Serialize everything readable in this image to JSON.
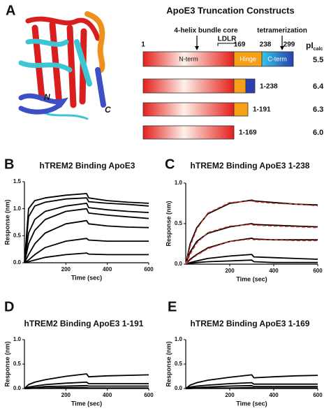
{
  "panel_a": {
    "label": "A",
    "n_terminus": "N",
    "c_terminus": "C"
  },
  "constructs": {
    "title": "ApoE3 Truncation Constructs",
    "annotations": {
      "bundle": "4-helix bundle core",
      "ldlr": "LDLR",
      "tetramerization": "tetramerization"
    },
    "residues": [
      "1",
      "169",
      "238",
      "299"
    ],
    "domains": [
      "N-term",
      "Hinge",
      "C-term"
    ],
    "pi_header": "pI",
    "pi_subscript": "calc",
    "rows": [
      {
        "pi": "5.5"
      },
      {
        "label": "1-238",
        "pi": "6.4"
      },
      {
        "label": "1-191",
        "pi": "6.3"
      },
      {
        "label": "1-169",
        "pi": "6.0"
      }
    ]
  },
  "chart_data": [
    {
      "type": "line",
      "panel": "B",
      "title": "hTREM2 Binding ApoE3",
      "x_label": "Time (sec)",
      "y_label": "Response (nm)",
      "x": [
        0,
        20,
        50,
        100,
        200,
        300,
        310,
        400,
        500,
        600
      ],
      "xlim": [
        0,
        600
      ],
      "xticks": [
        200,
        400,
        600
      ],
      "ylim": [
        0,
        1.5
      ],
      "yticks": [
        {
          "value": 0,
          "label": "0.0"
        },
        0.5,
        {
          "value": 1,
          "label": "1.0"
        },
        1.5
      ],
      "series": [
        {
          "color": "#000000",
          "values": [
            0,
            1.0,
            1.15,
            1.2,
            1.25,
            1.28,
            1.2,
            1.15,
            1.12,
            1.1
          ]
        },
        {
          "color": "#000000",
          "values": [
            0,
            0.85,
            1.05,
            1.12,
            1.18,
            1.2,
            1.13,
            1.1,
            1.08,
            1.05
          ]
        },
        {
          "color": "#000000",
          "values": [
            0,
            0.55,
            0.8,
            0.95,
            1.05,
            1.1,
            1.02,
            0.98,
            0.95,
            0.93
          ]
        },
        {
          "color": "#000000",
          "values": [
            0,
            0.35,
            0.6,
            0.8,
            0.95,
            1.0,
            0.92,
            0.88,
            0.85,
            0.82
          ]
        },
        {
          "color": "#000000",
          "values": [
            0,
            0.15,
            0.35,
            0.55,
            0.72,
            0.78,
            0.72,
            0.68,
            0.66,
            0.65
          ]
        },
        {
          "color": "#000000",
          "values": [
            0,
            0.05,
            0.15,
            0.28,
            0.4,
            0.45,
            0.42,
            0.4,
            0.4,
            0.4
          ]
        },
        {
          "color": "#000000",
          "values": [
            0,
            0.02,
            0.05,
            0.1,
            0.15,
            0.18,
            0.16,
            0.15,
            0.15,
            0.15
          ]
        }
      ]
    },
    {
      "type": "line",
      "panel": "C",
      "title": "hTREM2 Binding ApoE3 1-238",
      "x_label": "Time (sec)",
      "y_label": "Response (nm)",
      "x": [
        0,
        20,
        50,
        100,
        200,
        300,
        310,
        400,
        500,
        600
      ],
      "xlim": [
        0,
        600
      ],
      "xticks": [
        200,
        400,
        600
      ],
      "ylim": [
        0,
        1.0
      ],
      "yticks": [
        {
          "value": 0,
          "label": "0.0"
        },
        0.5,
        {
          "value": 1,
          "label": "1.0"
        }
      ],
      "series": [
        {
          "color": "#000000",
          "values": [
            0,
            0.25,
            0.45,
            0.62,
            0.75,
            0.79,
            0.78,
            0.76,
            0.74,
            0.73
          ]
        },
        {
          "color": "#000000",
          "values": [
            0,
            0.15,
            0.28,
            0.38,
            0.46,
            0.5,
            0.49,
            0.48,
            0.47,
            0.46
          ]
        },
        {
          "color": "#000000",
          "values": [
            0,
            0.06,
            0.12,
            0.2,
            0.28,
            0.32,
            0.31,
            0.3,
            0.3,
            0.3
          ]
        },
        {
          "color": "#000000",
          "values": [
            0,
            0.02,
            0.04,
            0.07,
            0.1,
            0.12,
            0.09,
            0.08,
            0.07,
            0.06
          ]
        },
        {
          "color": "#000000",
          "values": [
            0,
            0.01,
            0.02,
            0.03,
            0.04,
            0.05,
            0.03,
            0.02,
            0.02,
            0.02
          ]
        },
        {
          "color": "#e0302a",
          "dashed": true,
          "values": [
            0,
            0.22,
            0.43,
            0.63,
            0.76,
            0.78,
            0.77,
            0.75,
            0.74,
            0.72
          ]
        },
        {
          "color": "#e0302a",
          "dashed": true,
          "values": [
            0,
            0.12,
            0.26,
            0.39,
            0.47,
            0.49,
            0.48,
            0.47,
            0.46,
            0.45
          ]
        },
        {
          "color": "#e0302a",
          "dashed": true,
          "values": [
            0,
            0.05,
            0.11,
            0.19,
            0.28,
            0.31,
            0.3,
            0.3,
            0.29,
            0.29
          ]
        }
      ]
    },
    {
      "type": "line",
      "panel": "D",
      "title": "hTREM2 Binding ApoE3 1-191",
      "x_label": "Time (sec)",
      "y_label": "Response (nm)",
      "x": [
        0,
        20,
        50,
        100,
        200,
        300,
        310,
        400,
        500,
        600
      ],
      "xlim": [
        0,
        600
      ],
      "xticks": [
        200,
        400,
        600
      ],
      "ylim": [
        0,
        1.0
      ],
      "yticks": [
        {
          "value": 0,
          "label": "0.0"
        },
        0.5,
        {
          "value": 1,
          "label": "1.0"
        }
      ],
      "series": [
        {
          "color": "#000000",
          "values": [
            0,
            0.08,
            0.13,
            0.18,
            0.25,
            0.3,
            0.24,
            0.26,
            0.27,
            0.28
          ]
        },
        {
          "color": "#000000",
          "values": [
            0,
            0.03,
            0.05,
            0.08,
            0.11,
            0.13,
            0.1,
            0.1,
            0.1,
            0.1
          ]
        },
        {
          "color": "#000000",
          "values": [
            0,
            0.01,
            0.02,
            0.04,
            0.05,
            0.06,
            0.05,
            0.05,
            0.05,
            0.05
          ]
        },
        {
          "color": "#000000",
          "values": [
            0,
            0,
            0.01,
            0.01,
            0.02,
            0.02,
            0.01,
            0.01,
            0.01,
            0.01
          ]
        }
      ]
    },
    {
      "type": "line",
      "panel": "E",
      "title": "hTREM2 Binding ApoE3 1-169",
      "x_label": "Time (sec)",
      "y_label": "Response (nm)",
      "x": [
        0,
        20,
        50,
        100,
        200,
        300,
        310,
        400,
        500,
        600
      ],
      "xlim": [
        0,
        600
      ],
      "xticks": [
        200,
        400,
        600
      ],
      "ylim": [
        0,
        1.0
      ],
      "yticks": [
        {
          "value": 0,
          "label": "0.0"
        },
        0.5,
        {
          "value": 1,
          "label": "1.0"
        }
      ],
      "series": [
        {
          "color": "#000000",
          "values": [
            0,
            0.07,
            0.12,
            0.17,
            0.23,
            0.28,
            0.22,
            0.24,
            0.26,
            0.27
          ]
        },
        {
          "color": "#000000",
          "values": [
            0,
            0.03,
            0.05,
            0.07,
            0.1,
            0.12,
            0.09,
            0.09,
            0.09,
            0.09
          ]
        },
        {
          "color": "#000000",
          "values": [
            0,
            0.01,
            0.02,
            0.03,
            0.05,
            0.06,
            0.04,
            0.04,
            0.04,
            0.04
          ]
        },
        {
          "color": "#000000",
          "values": [
            0,
            0,
            0.01,
            0.01,
            0.01,
            0.02,
            0.01,
            0.01,
            0.01,
            0.01
          ]
        }
      ]
    }
  ]
}
